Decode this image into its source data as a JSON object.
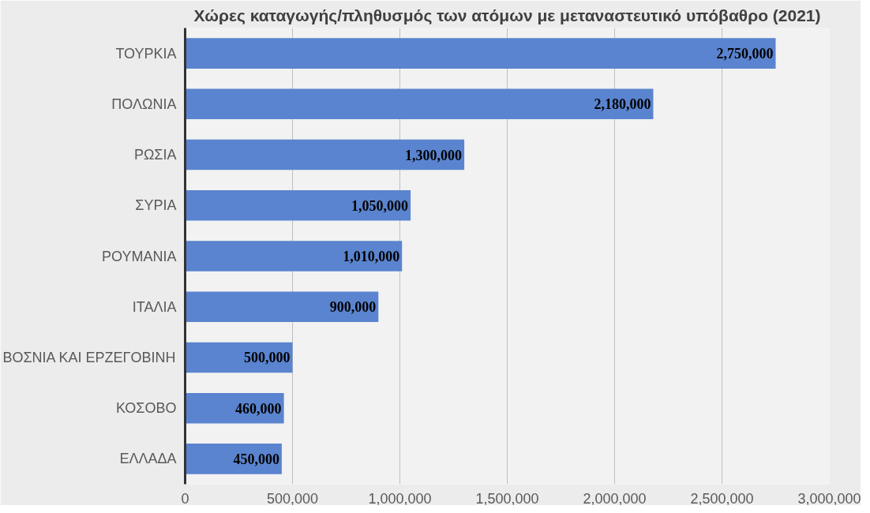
{
  "chart_data": {
    "type": "bar",
    "orientation": "horizontal",
    "title": "Χώρες καταγωγής/πληθυσμός των ατόμων με μεταναστευτικό υπόβαθρο (2021)",
    "categories": [
      "ΤΟΥΡΚΙΑ",
      "ΠΟΛΩΝΙΑ",
      "ΡΩΣΙΑ",
      "ΣΥΡΙΑ",
      "ΡΟΥΜΑΝΙΑ",
      "ΙΤΑΛΙΑ",
      "ΒΟΣΝΙΑ ΚΑΙ ΕΡΖΕΓΟΒΙΝΗ",
      "ΚΟΣΟΒΟ",
      "ΕΛΛΑΔΑ"
    ],
    "values": [
      2750000,
      2180000,
      1300000,
      1050000,
      1010000,
      900000,
      500000,
      460000,
      450000
    ],
    "value_labels": [
      "2,750,000",
      "2,180,000",
      "1,300,000",
      "1,050,000",
      "1,010,000",
      "900,000",
      "500,000",
      "460,000",
      "450,000"
    ],
    "color": "#5a84cf",
    "xlim": [
      0,
      3000000
    ],
    "xticks": [
      0,
      {
        "value": 500000,
        "label": "500,000"
      },
      {
        "value": 1000000,
        "label": "1,000,000"
      },
      {
        "value": 1500000,
        "label": "1,500,000"
      },
      {
        "value": 2000000,
        "label": "2,000,000"
      },
      {
        "value": 2500000,
        "label": "2,500,000"
      },
      {
        "value": 3000000,
        "label": "3,000,000"
      }
    ],
    "grid": "x"
  }
}
